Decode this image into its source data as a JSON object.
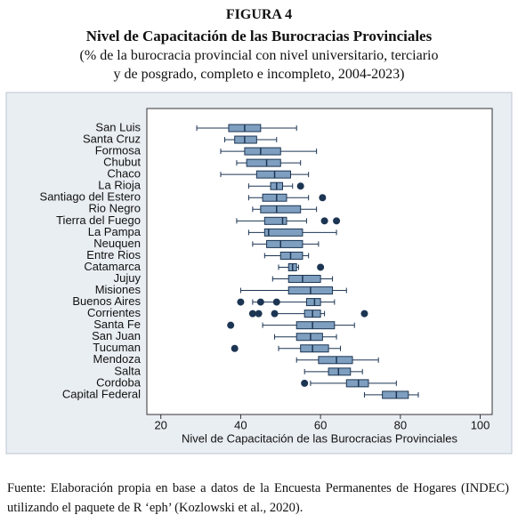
{
  "figure": {
    "label": "FIGURA 4",
    "title": "Nivel de Capacitación de las Burocracias Provinciales",
    "subtitle": [
      "(% de la burocracia provincial con nivel universitario, terciario",
      "y de posgrado, completo e incompleto, 2004-2023)"
    ]
  },
  "chart_data": {
    "type": "box",
    "orientation": "horizontal",
    "xlabel": "Nivel de Capacitación de las Burocracias Provinciales",
    "categories": [
      "San Luis",
      "Santa Cruz",
      "Formosa",
      "Chubut",
      "Chaco",
      "La Rioja",
      "Santiago del Estero",
      "Rio Negro",
      "Tierra del Fuego",
      "La Pampa",
      "Neuquen",
      "Entre Rios",
      "Catamarca",
      "Jujuy",
      "Misiones",
      "Buenos Aires",
      "Corrientes",
      "Santa Fe",
      "San Juan",
      "Tucuman",
      "Mendoza",
      "Salta",
      "Cordoba",
      "Capital Federal"
    ],
    "whisker_low": [
      29,
      36,
      35,
      39,
      35,
      42,
      42,
      43,
      39,
      42,
      43,
      46,
      49.5,
      48,
      40,
      43,
      49,
      45.5,
      48.5,
      49.5,
      54,
      56,
      57.5,
      71
    ],
    "q1": [
      37,
      38.5,
      41,
      41.5,
      44,
      47.5,
      45.5,
      45,
      46,
      46,
      46.5,
      50,
      52,
      52,
      52,
      56.5,
      56,
      54,
      54,
      55,
      59.5,
      62,
      66.5,
      75.5
    ],
    "median": [
      41,
      41,
      45,
      46.5,
      48.5,
      49,
      49,
      49,
      50.5,
      47,
      50,
      52.5,
      53,
      55.5,
      57.5,
      58.5,
      58,
      58,
      57.5,
      58,
      64,
      64.5,
      69.5,
      79
    ],
    "q3": [
      45,
      44,
      50,
      50,
      52.5,
      50.5,
      51.5,
      55,
      51.5,
      55.5,
      55.5,
      55.5,
      54,
      60,
      63,
      60,
      60,
      63.5,
      60.5,
      62,
      68,
      67.5,
      72,
      82
    ],
    "whisker_high": [
      54,
      49,
      59,
      55,
      57,
      53,
      57,
      59,
      56.5,
      64,
      59.5,
      57,
      54.5,
      63,
      66.5,
      63.5,
      61,
      68.5,
      64,
      65,
      74.5,
      70.5,
      79,
      84.5
    ],
    "outliers": [
      [],
      [],
      [],
      [],
      [],
      [
        55
      ],
      [
        60.5
      ],
      [],
      [
        61,
        64
      ],
      [],
      [],
      [],
      [
        60
      ],
      [],
      [],
      [
        40,
        45,
        49
      ],
      [
        43,
        44.5,
        48.5,
        71
      ],
      [
        37.5
      ],
      [],
      [
        38.5
      ],
      [],
      [],
      [
        56
      ],
      []
    ],
    "box_color": "#7f9fc0",
    "line_color": "#1c3553",
    "outlier_color": "#1c3553",
    "xlim": [
      16.5,
      103
    ],
    "xticks": [
      20,
      40,
      60,
      80,
      100
    ],
    "grid": false
  },
  "source": "Fuente: Elaboración propia en base a datos de la Encuesta Permanentes de Hogares (INDEC) utilizando el paquete de R ‘eph’ (Kozlowski et al., 2020)."
}
